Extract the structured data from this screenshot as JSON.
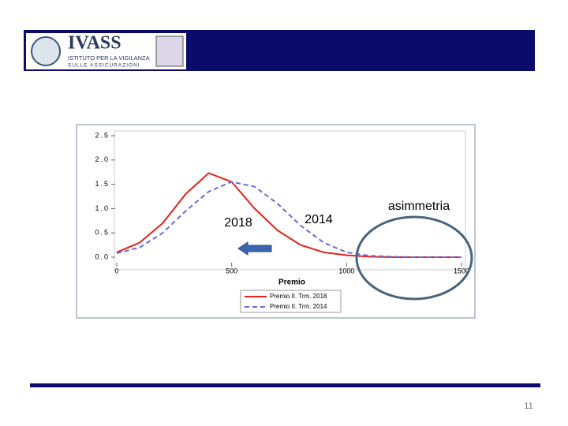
{
  "header": {
    "logo_title": "IVASS",
    "logo_line1": "ISTITUTO PER LA VIGILANZA",
    "logo_line2": "SULLE ASSICURAZIONI"
  },
  "chart_data": {
    "type": "line",
    "x": [
      0,
      100,
      200,
      300,
      400,
      500,
      600,
      700,
      800,
      900,
      1000,
      1100,
      1200,
      1300,
      1400,
      1500
    ],
    "series": [
      {
        "name": "Premio II. Trm. 2018",
        "color": "#e8201c",
        "dash": false,
        "values": [
          0.1,
          0.3,
          0.7,
          1.3,
          1.73,
          1.55,
          1.0,
          0.55,
          0.25,
          0.1,
          0.04,
          0.01,
          0,
          0,
          0,
          0
        ]
      },
      {
        "name": "Premio II. Trm. 2014",
        "color": "#6a6adc",
        "dash": true,
        "values": [
          0.08,
          0.2,
          0.5,
          0.95,
          1.35,
          1.55,
          1.45,
          1.1,
          0.65,
          0.3,
          0.1,
          0.03,
          0.01,
          0,
          0,
          0
        ]
      }
    ],
    "xlabel": "Premio",
    "xlim": [
      0,
      1500
    ],
    "xticks": [
      0,
      500,
      1000,
      1500
    ],
    "ylim": [
      0,
      2.5
    ],
    "yticks": [
      {
        "value": 0,
        "label": "0.0"
      },
      0.5,
      {
        "value": 1,
        "label": "1.0"
      },
      1.5,
      {
        "value": 2,
        "label": "2.0"
      },
      2.5
    ],
    "annotations": [
      "2018",
      "2014",
      "asimmetria"
    ]
  },
  "footer": {
    "page_number": "11"
  }
}
